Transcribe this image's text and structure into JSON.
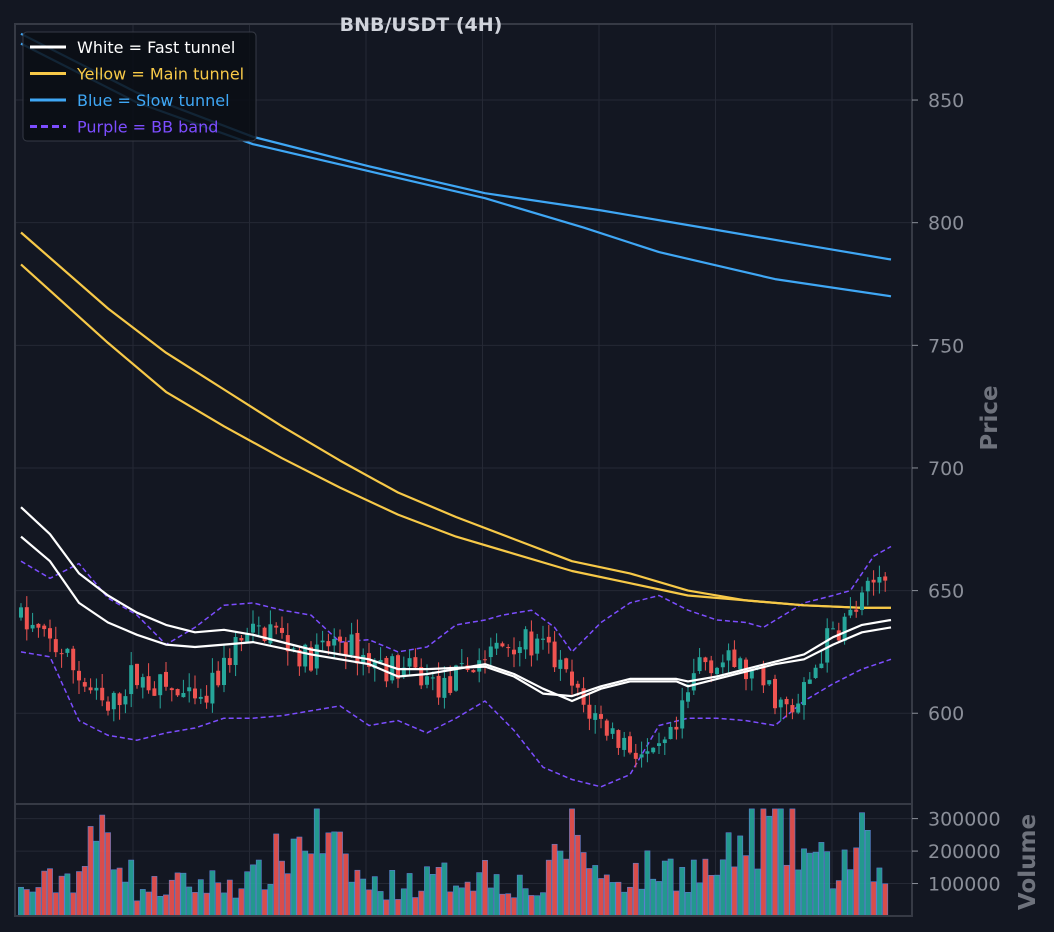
{
  "chart_data": {
    "type": "candlestick",
    "title": "BNB/USDT (4H)",
    "ylabel_price": "Price",
    "ylabel_volume": "Volume",
    "price_ylim": [
      563,
      881
    ],
    "price_ticks": [
      "600",
      "650",
      "700",
      "750",
      "800",
      "850"
    ],
    "volume_ylim": [
      0,
      345000
    ],
    "volume_ticks": [
      "100000",
      "200000",
      "300000"
    ],
    "legend": [
      {
        "label": "White = Fast tunnel",
        "color": "#ffffff",
        "dash": false
      },
      {
        "label": "Yellow = Main tunnel",
        "color": "#f7c948",
        "dash": false
      },
      {
        "label": "Blue = Slow tunnel",
        "color": "#3fa7f5",
        "dash": false
      },
      {
        "label": "Purple = BB band",
        "color": "#7c4dff",
        "dash": true
      }
    ],
    "legend_position": "top-left",
    "grid": true,
    "colors": {
      "up": "#26a69a",
      "down": "#ef5350",
      "background": "#131722"
    },
    "n_bars": 150,
    "close_anchors": [
      [
        0,
        640
      ],
      [
        8,
        625
      ],
      [
        12,
        612
      ],
      [
        16,
        600
      ],
      [
        20,
        615
      ],
      [
        26,
        610
      ],
      [
        32,
        602
      ],
      [
        38,
        628
      ],
      [
        44,
        635
      ],
      [
        50,
        622
      ],
      [
        56,
        630
      ],
      [
        62,
        620
      ],
      [
        68,
        617
      ],
      [
        74,
        610
      ],
      [
        80,
        622
      ],
      [
        86,
        630
      ],
      [
        92,
        625
      ],
      [
        98,
        603
      ],
      [
        104,
        590
      ],
      [
        110,
        580
      ],
      [
        114,
        592
      ],
      [
        118,
        622
      ],
      [
        124,
        620
      ],
      [
        130,
        610
      ],
      [
        134,
        598
      ],
      [
        140,
        630
      ],
      [
        146,
        645
      ],
      [
        150,
        660
      ],
      [
        153,
        650
      ],
      [
        158,
        650
      ],
      [
        160,
        645
      ]
    ],
    "fast_tunnel": {
      "upper": [
        [
          0,
          684
        ],
        [
          5,
          673
        ],
        [
          10,
          657
        ],
        [
          15,
          648
        ],
        [
          20,
          641
        ],
        [
          25,
          636
        ],
        [
          30,
          633
        ],
        [
          35,
          634
        ],
        [
          40,
          632
        ],
        [
          50,
          626
        ],
        [
          60,
          622
        ],
        [
          65,
          618
        ],
        [
          70,
          618
        ],
        [
          80,
          619
        ],
        [
          85,
          615
        ],
        [
          90,
          608
        ],
        [
          95,
          607
        ],
        [
          100,
          611
        ],
        [
          105,
          614
        ],
        [
          110,
          614
        ],
        [
          113,
          614
        ],
        [
          115,
          613
        ],
        [
          120,
          615
        ],
        [
          125,
          618
        ],
        [
          130,
          621
        ],
        [
          135,
          624
        ],
        [
          140,
          631
        ],
        [
          145,
          636
        ],
        [
          150,
          638
        ]
      ],
      "lower": [
        [
          0,
          672
        ],
        [
          5,
          662
        ],
        [
          10,
          645
        ],
        [
          15,
          637
        ],
        [
          20,
          632
        ],
        [
          25,
          628
        ],
        [
          30,
          627
        ],
        [
          35,
          628
        ],
        [
          40,
          629
        ],
        [
          50,
          624
        ],
        [
          60,
          620
        ],
        [
          65,
          615
        ],
        [
          70,
          616
        ],
        [
          80,
          620
        ],
        [
          85,
          616
        ],
        [
          90,
          610
        ],
        [
          95,
          605
        ],
        [
          100,
          610
        ],
        [
          105,
          613
        ],
        [
          110,
          613
        ],
        [
          113,
          613
        ],
        [
          115,
          611
        ],
        [
          120,
          614
        ],
        [
          125,
          617
        ],
        [
          130,
          620
        ],
        [
          135,
          622
        ],
        [
          140,
          628
        ],
        [
          145,
          633
        ],
        [
          150,
          635
        ]
      ]
    },
    "main_tunnel": {
      "upper": [
        [
          0,
          796
        ],
        [
          15,
          765
        ],
        [
          25,
          747
        ],
        [
          35,
          732
        ],
        [
          45,
          717
        ],
        [
          55,
          703
        ],
        [
          65,
          690
        ],
        [
          75,
          680
        ],
        [
          85,
          671
        ],
        [
          95,
          662
        ],
        [
          105,
          657
        ],
        [
          115,
          650
        ],
        [
          125,
          646
        ],
        [
          135,
          644
        ],
        [
          145,
          643
        ],
        [
          150,
          643
        ]
      ],
      "lower": [
        [
          0,
          783
        ],
        [
          15,
          751
        ],
        [
          25,
          731
        ],
        [
          35,
          717
        ],
        [
          45,
          704
        ],
        [
          55,
          692
        ],
        [
          65,
          681
        ],
        [
          75,
          672
        ],
        [
          85,
          665
        ],
        [
          95,
          658
        ],
        [
          105,
          653
        ],
        [
          115,
          648
        ],
        [
          125,
          646
        ],
        [
          135,
          644
        ],
        [
          145,
          643
        ],
        [
          150,
          643
        ]
      ]
    },
    "slow_tunnel": {
      "upper": [
        [
          0,
          877
        ],
        [
          20,
          853
        ],
        [
          40,
          835
        ],
        [
          60,
          823
        ],
        [
          80,
          812
        ],
        [
          100,
          805
        ],
        [
          120,
          797
        ],
        [
          135,
          791
        ],
        [
          150,
          785
        ]
      ],
      "lower": [
        [
          0,
          873
        ],
        [
          20,
          849
        ],
        [
          40,
          832
        ],
        [
          60,
          821
        ],
        [
          80,
          810
        ],
        [
          97,
          798
        ],
        [
          110,
          788
        ],
        [
          130,
          777
        ],
        [
          150,
          770
        ]
      ]
    },
    "bb_upper": [
      [
        0,
        662
      ],
      [
        5,
        655
      ],
      [
        10,
        661
      ],
      [
        15,
        647
      ],
      [
        20,
        640
      ],
      [
        25,
        628
      ],
      [
        30,
        635
      ],
      [
        35,
        644
      ],
      [
        40,
        645
      ],
      [
        45,
        642
      ],
      [
        50,
        640
      ],
      [
        55,
        629
      ],
      [
        60,
        630
      ],
      [
        65,
        625
      ],
      [
        70,
        627
      ],
      [
        75,
        636
      ],
      [
        80,
        638
      ],
      [
        83,
        640
      ],
      [
        88,
        642
      ],
      [
        92,
        635
      ],
      [
        95,
        625
      ],
      [
        100,
        637
      ],
      [
        105,
        645
      ],
      [
        110,
        648
      ],
      [
        115,
        642
      ],
      [
        120,
        638
      ],
      [
        125,
        637
      ],
      [
        128,
        635
      ],
      [
        135,
        645
      ],
      [
        140,
        648
      ],
      [
        143,
        650
      ],
      [
        147,
        664
      ],
      [
        150,
        668
      ]
    ],
    "bb_lower": [
      [
        0,
        625
      ],
      [
        5,
        623
      ],
      [
        10,
        597
      ],
      [
        15,
        591
      ],
      [
        20,
        589
      ],
      [
        25,
        592
      ],
      [
        30,
        594
      ],
      [
        35,
        598
      ],
      [
        40,
        598
      ],
      [
        45,
        599
      ],
      [
        50,
        601
      ],
      [
        55,
        603
      ],
      [
        60,
        595
      ],
      [
        65,
        597
      ],
      [
        70,
        592
      ],
      [
        75,
        598
      ],
      [
        80,
        605
      ],
      [
        85,
        593
      ],
      [
        90,
        578
      ],
      [
        95,
        573
      ],
      [
        100,
        570
      ],
      [
        105,
        575
      ],
      [
        110,
        595
      ],
      [
        115,
        598
      ],
      [
        120,
        598
      ],
      [
        125,
        597
      ],
      [
        130,
        595
      ],
      [
        135,
        605
      ],
      [
        140,
        612
      ],
      [
        145,
        618
      ],
      [
        150,
        622
      ]
    ],
    "volume_anchors": [
      [
        0,
        80000
      ],
      [
        10,
        150000
      ],
      [
        15,
        320000
      ],
      [
        20,
        90000
      ],
      [
        30,
        110000
      ],
      [
        40,
        120000
      ],
      [
        50,
        290000
      ],
      [
        60,
        100000
      ],
      [
        70,
        120000
      ],
      [
        80,
        150000
      ],
      [
        90,
        80000
      ],
      [
        95,
        330000
      ],
      [
        100,
        120000
      ],
      [
        110,
        160000
      ],
      [
        120,
        150000
      ],
      [
        128,
        320000
      ],
      [
        140,
        150000
      ],
      [
        145,
        240000
      ],
      [
        150,
        70000
      ]
    ]
  }
}
